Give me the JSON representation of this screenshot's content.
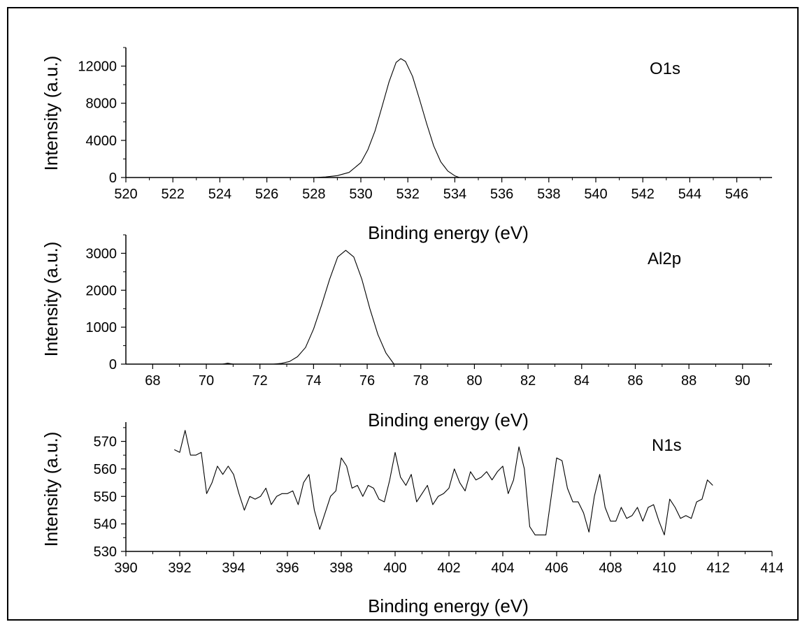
{
  "chart_data": [
    {
      "type": "line",
      "annotation": "O1s",
      "xlabel": "Binding energy (eV)",
      "ylabel": "Intensity (a.u.)",
      "xlim": [
        520,
        547.5
      ],
      "ylim": [
        0,
        14000
      ],
      "x_ticks": [
        520,
        522,
        524,
        526,
        528,
        530,
        532,
        534,
        536,
        538,
        540,
        542,
        544,
        546
      ],
      "y_ticks": [
        0,
        4000,
        8000,
        12000
      ],
      "x_ticks_display": [
        "520",
        "522",
        "524",
        "526",
        "528",
        "530",
        "532",
        "534",
        "536",
        "538",
        "540",
        "542",
        "544",
        "546"
      ],
      "y_ticks_display": [
        "0",
        "4000",
        "8000",
        "12000"
      ],
      "line_color": "#000000",
      "grid": false,
      "series": [
        {
          "x": [
            528.0,
            528.5,
            529.0,
            529.5,
            530.0,
            530.3,
            530.6,
            530.9,
            531.2,
            531.5,
            531.7,
            531.9,
            532.2,
            532.5,
            532.8,
            533.1,
            533.4,
            533.7,
            534.0,
            534.2
          ],
          "y": [
            0,
            60,
            200,
            550,
            1600,
            3000,
            5000,
            7600,
            10300,
            12400,
            12800,
            12500,
            10900,
            8400,
            5800,
            3400,
            1700,
            700,
            180,
            0
          ]
        }
      ]
    },
    {
      "type": "line",
      "annotation": "Al2p",
      "xlabel": "Binding energy (eV)",
      "ylabel": "Intensity (a.u.)",
      "xlim": [
        67,
        91.1
      ],
      "ylim": [
        0,
        3500
      ],
      "x_ticks": [
        68,
        70,
        72,
        74,
        76,
        78,
        80,
        82,
        84,
        86,
        88,
        90
      ],
      "y_ticks": [
        0,
        1000,
        2000,
        3000
      ],
      "x_ticks_display": [
        "68",
        "70",
        "72",
        "74",
        "76",
        "78",
        "80",
        "82",
        "84",
        "86",
        "88",
        "90"
      ],
      "y_ticks_display": [
        "0",
        "1000",
        "2000",
        "3000"
      ],
      "line_color": "#000000",
      "grid": false,
      "series": [
        {
          "x": [
            70.6,
            70.8,
            71.0,
            72.5,
            72.8,
            73.1,
            73.4,
            73.7,
            74.0,
            74.3,
            74.6,
            74.9,
            75.2,
            75.5,
            75.8,
            76.1,
            76.4,
            76.7,
            77.0
          ],
          "y": [
            0,
            25,
            0,
            0,
            20,
            70,
            200,
            450,
            950,
            1600,
            2300,
            2900,
            3080,
            2900,
            2300,
            1500,
            800,
            300,
            0
          ]
        }
      ]
    },
    {
      "type": "line",
      "annotation": "N1s",
      "xlabel": "Binding energy (eV)",
      "ylabel": "Intensity (a.u.)",
      "xlim": [
        390,
        414
      ],
      "ylim": [
        530,
        577
      ],
      "x_ticks": [
        390,
        392,
        394,
        396,
        398,
        400,
        402,
        404,
        406,
        408,
        410,
        412,
        414
      ],
      "y_ticks": [
        530,
        540,
        550,
        560,
        570
      ],
      "x_ticks_display": [
        "390",
        "392",
        "394",
        "396",
        "398",
        "400",
        "402",
        "404",
        "406",
        "408",
        "410",
        "412",
        "414"
      ],
      "y_ticks_display": [
        "530",
        "540",
        "550",
        "560",
        "570"
      ],
      "line_color": "#000000",
      "grid": false,
      "series": [
        {
          "x": [
            391.8,
            392.0,
            392.2,
            392.4,
            392.6,
            392.8,
            393.0,
            393.2,
            393.4,
            393.6,
            393.8,
            394.0,
            394.2,
            394.4,
            394.6,
            394.8,
            395.0,
            395.2,
            395.4,
            395.6,
            395.8,
            396.0,
            396.2,
            396.4,
            396.6,
            396.8,
            397.0,
            397.2,
            397.4,
            397.6,
            397.8,
            398.0,
            398.2,
            398.4,
            398.6,
            398.8,
            399.0,
            399.2,
            399.4,
            399.6,
            399.8,
            400.0,
            400.2,
            400.4,
            400.6,
            400.8,
            401.0,
            401.2,
            401.4,
            401.6,
            401.8,
            402.0,
            402.2,
            402.4,
            402.6,
            402.8,
            403.0,
            403.2,
            403.4,
            403.6,
            403.8,
            404.0,
            404.2,
            404.4,
            404.6,
            404.8,
            405.0,
            405.2,
            405.4,
            405.6,
            405.8,
            406.0,
            406.2,
            406.4,
            406.6,
            406.8,
            407.0,
            407.2,
            407.4,
            407.6,
            407.8,
            408.0,
            408.2,
            408.4,
            408.6,
            408.8,
            409.0,
            409.2,
            409.4,
            409.6,
            409.8,
            410.0,
            410.2,
            410.4,
            410.6,
            410.8,
            411.0,
            411.2,
            411.4,
            411.6,
            411.8
          ],
          "y": [
            567,
            566,
            574,
            565,
            565,
            566,
            551,
            555,
            561,
            558,
            561,
            558,
            551,
            545,
            550,
            549,
            550,
            553,
            547,
            550,
            551,
            551,
            552,
            547,
            555,
            558,
            545,
            538,
            544,
            550,
            552,
            564,
            561,
            553,
            554,
            550,
            554,
            553,
            549,
            548,
            556,
            566,
            557,
            554,
            558,
            548,
            551,
            554,
            547,
            550,
            551,
            553,
            560,
            555,
            552,
            559,
            556,
            557,
            559,
            556,
            559,
            561,
            551,
            556,
            568,
            560,
            539,
            536,
            536,
            536,
            550,
            564,
            563,
            553,
            548,
            548,
            544,
            537,
            550,
            558,
            546,
            541,
            541,
            546,
            542,
            543,
            546,
            541,
            546,
            547,
            541,
            536,
            549,
            546,
            542,
            543,
            542,
            548,
            549,
            556,
            554
          ]
        }
      ]
    }
  ]
}
